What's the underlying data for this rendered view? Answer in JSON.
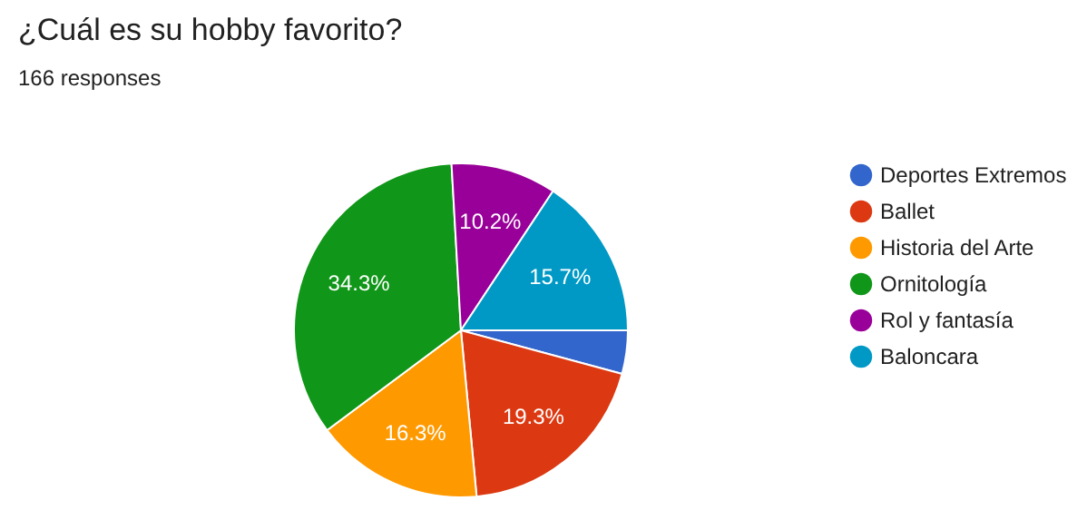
{
  "chart_data": {
    "type": "pie",
    "title": "¿Cuál es su hobby favorito?",
    "subtitle": "166 responses",
    "categories": [
      "Deportes Extremos",
      "Ballet",
      "Historia del Arte",
      "Ornitología",
      "Rol y fantasía",
      "Baloncara"
    ],
    "values": [
      4.2,
      19.3,
      16.3,
      34.3,
      10.2,
      15.7
    ],
    "value_labels": [
      null,
      "19.3%",
      "16.3%",
      "34.3%",
      "10.2%",
      "15.7%"
    ],
    "colors": [
      "#3366cc",
      "#dc3912",
      "#ff9900",
      "#109618",
      "#990099",
      "#0099c6"
    ],
    "legend": "right"
  }
}
